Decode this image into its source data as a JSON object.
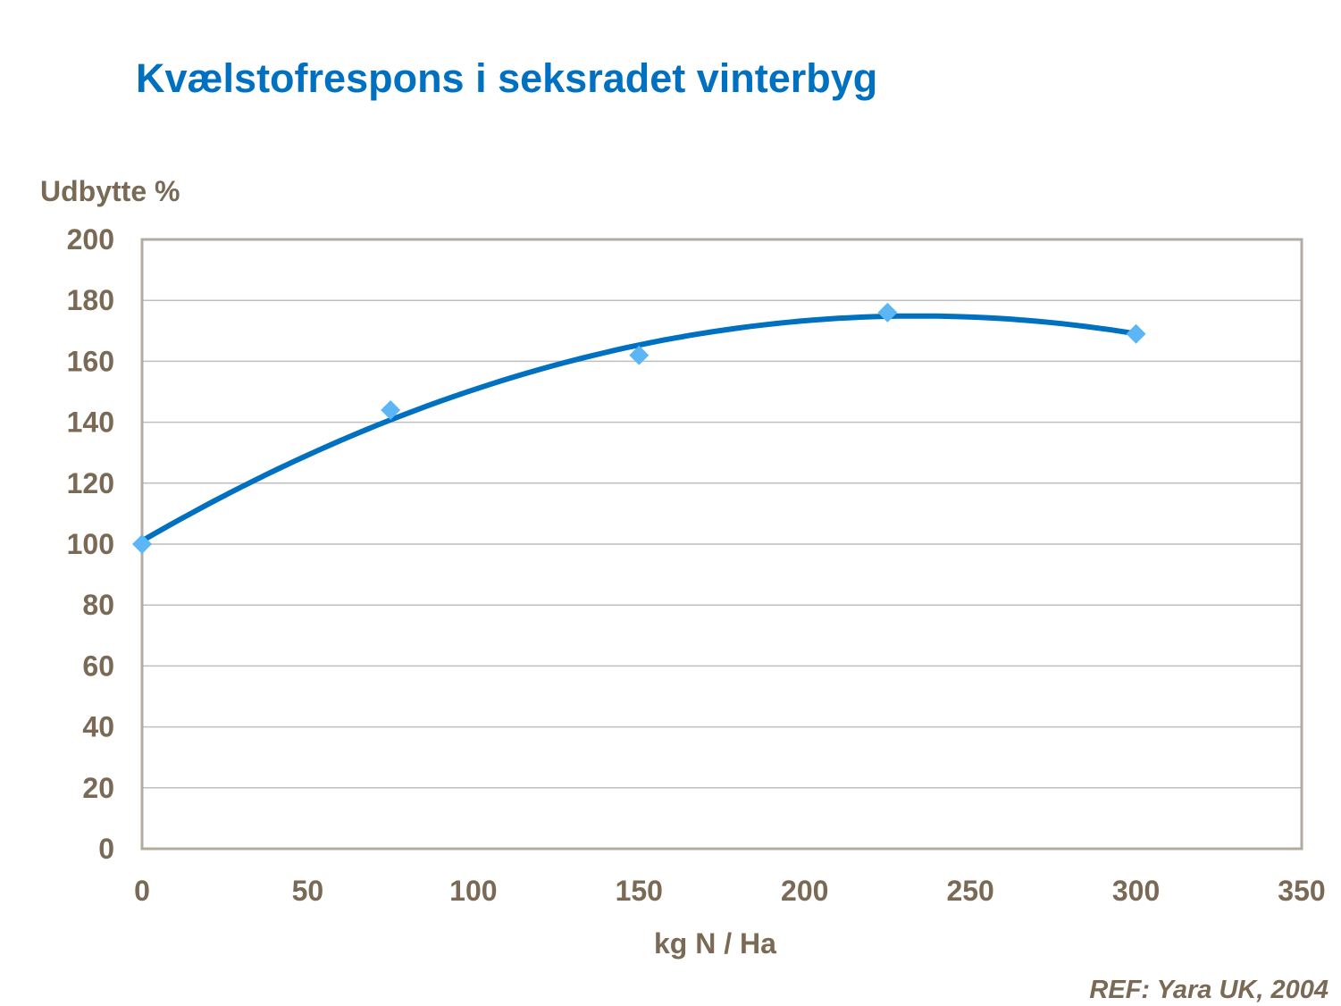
{
  "title": "Kvælstofrespons i seksradet vinterbyg",
  "reference": "REF: Yara UK, 2004",
  "colors": {
    "title": "#0070c0",
    "text": "#7a6a55",
    "trendline": "#0070c0",
    "marker": "#5cb5f5",
    "gridline": "#bfbfbf",
    "plot_border": "#b3aba0"
  },
  "chart_data": {
    "type": "scatter",
    "xlabel": "kg N / Ha",
    "ylabel": "Udbytte %",
    "xlim": [
      0,
      350
    ],
    "ylim": [
      0,
      200
    ],
    "x_ticks": [
      0,
      50,
      100,
      150,
      200,
      250,
      300,
      350
    ],
    "y_ticks": [
      0,
      20,
      40,
      60,
      80,
      100,
      120,
      140,
      160,
      180,
      200
    ],
    "grid": "horizontal",
    "marker": "diamond",
    "series": [
      {
        "x": [
          0,
          75,
          150,
          225,
          300
        ],
        "y": [
          100,
          144,
          162,
          176,
          169
        ]
      }
    ],
    "trendline": {
      "type": "polynomial",
      "order": 2,
      "x_range": [
        0,
        300
      ]
    }
  }
}
